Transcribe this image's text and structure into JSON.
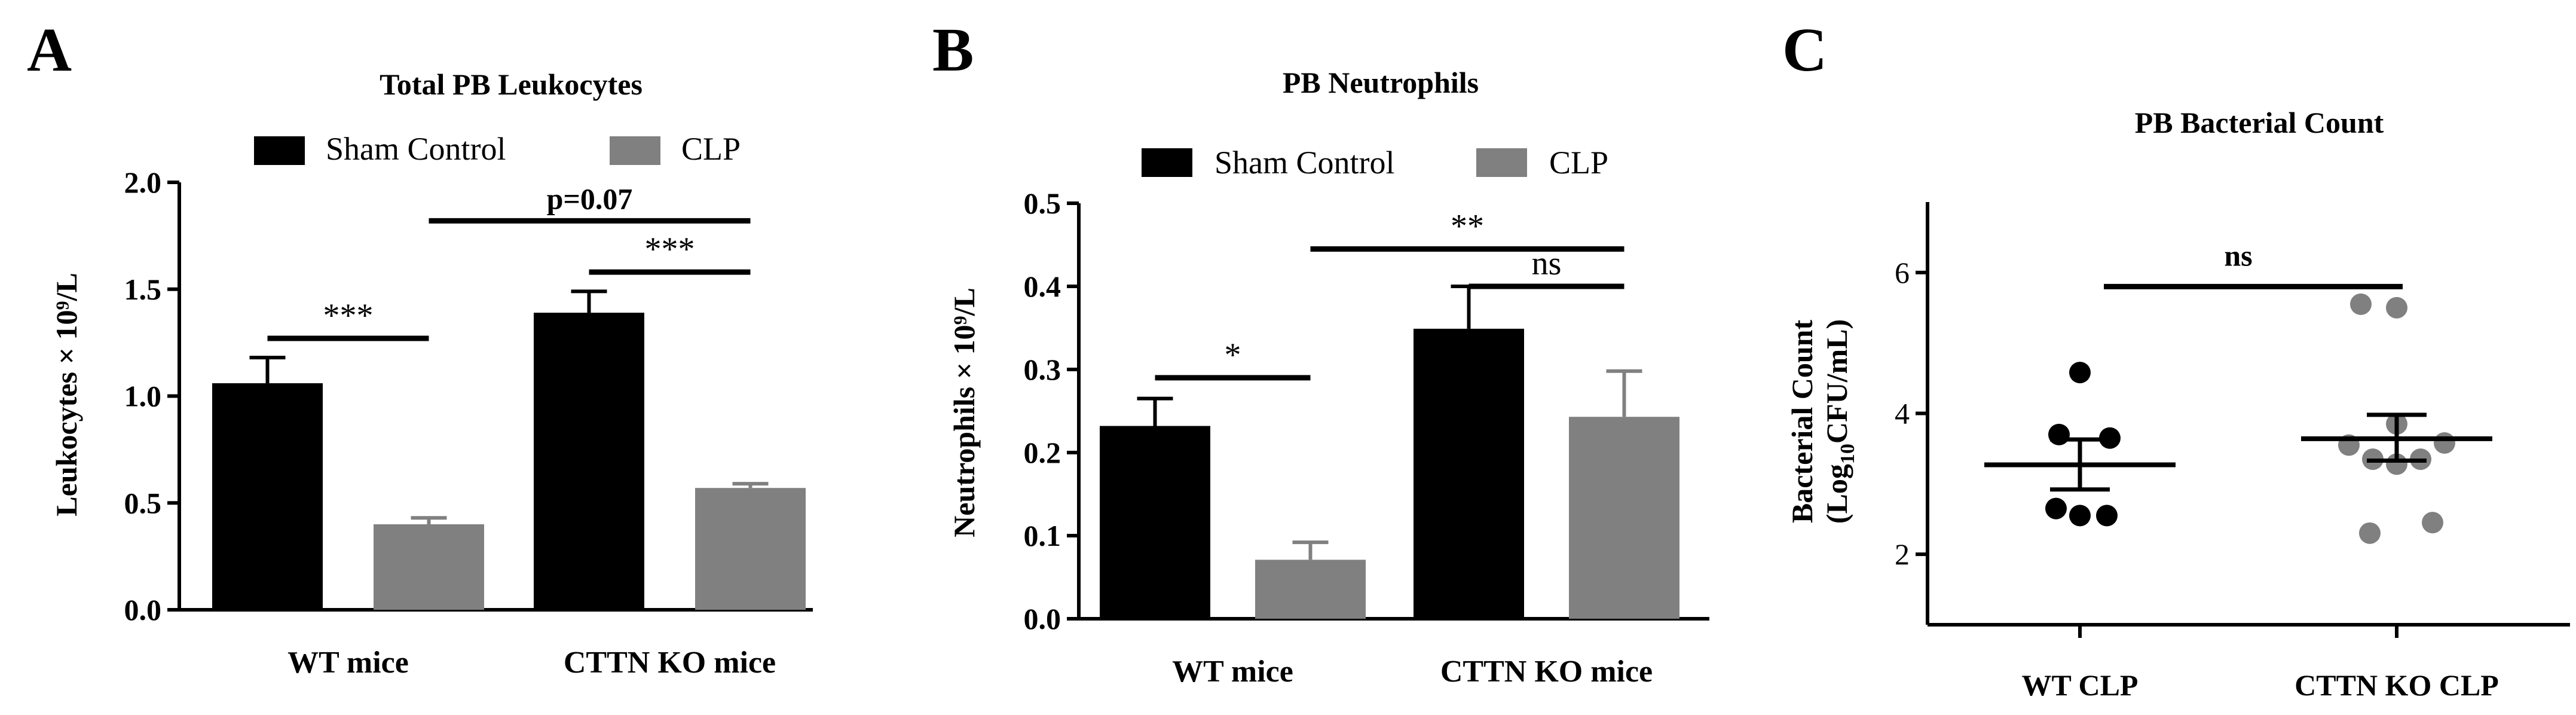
{
  "panels": [
    {
      "letter": "A",
      "title": "Total PB Leukocytes",
      "legend": [
        {
          "label": "Sham Control",
          "color": "#000000"
        },
        {
          "label": "CLP",
          "color": "#808080"
        }
      ],
      "ylabel": "Leukocytes × 10⁹/L",
      "chart_data": {
        "type": "bar",
        "categories": [
          "WT mice",
          "CTTN KO mice"
        ],
        "series": [
          {
            "name": "Sham Control",
            "color": "#000000",
            "values": [
              1.06,
              1.39
            ],
            "errors": [
              0.12,
              0.1
            ]
          },
          {
            "name": "CLP",
            "color": "#808080",
            "values": [
              0.4,
              0.57
            ],
            "errors": [
              0.03,
              0.02
            ]
          }
        ],
        "ylim": [
          0,
          2.0
        ],
        "yticks": [
          "0.0",
          "0.5",
          "1.0",
          "1.5",
          "2.0"
        ],
        "annotations": [
          {
            "text": "***",
            "label": "WT Sham vs WT CLP"
          },
          {
            "text": "***",
            "label": "KO Sham vs KO CLP"
          },
          {
            "text": "p=0.07",
            "label": "WT CLP vs KO CLP"
          }
        ]
      }
    },
    {
      "letter": "B",
      "title": "PB Neutrophils",
      "legend": [
        {
          "label": "Sham Control",
          "color": "#000000"
        },
        {
          "label": "CLP",
          "color": "#808080"
        }
      ],
      "ylabel": "Neutrophils × 10⁹/L",
      "chart_data": {
        "type": "bar",
        "categories": [
          "WT mice",
          "CTTN KO mice"
        ],
        "series": [
          {
            "name": "Sham Control",
            "color": "#000000",
            "values": [
              0.232,
              0.349
            ],
            "errors": [
              0.033,
              0.051
            ]
          },
          {
            "name": "CLP",
            "color": "#808080",
            "values": [
              0.071,
              0.243
            ],
            "errors": [
              0.021,
              0.055
            ]
          }
        ],
        "ylim": [
          0,
          0.5
        ],
        "yticks": [
          "0.0",
          "0.1",
          "0.2",
          "0.3",
          "0.4",
          "0.5"
        ],
        "annotations": [
          {
            "text": "*",
            "label": "WT Sham vs WT CLP"
          },
          {
            "text": "ns",
            "label": "KO Sham vs KO CLP"
          },
          {
            "text": "**",
            "label": "WT CLP vs KO CLP"
          }
        ]
      }
    },
    {
      "letter": "C",
      "title": "PB Bacterial Count",
      "ylabel_line1": "Bacterial Count",
      "ylabel_line2_pre": "(Log",
      "ylabel_line2_sub": "10",
      "ylabel_line2_post": "CFU/mL)",
      "chart_data": {
        "type": "scatter",
        "categories": [
          "WT CLP",
          "CTTN KO CLP"
        ],
        "groups": [
          {
            "name": "WT CLP",
            "color": "#000000",
            "mean": 3.27,
            "sem_low": 2.92,
            "sem_high": 3.63,
            "points": [
              4.58,
              3.7,
              3.65,
              2.65,
              2.55,
              2.55
            ]
          },
          {
            "name": "CTTN KO CLP",
            "color": "#808080",
            "mean": 3.64,
            "sem_low": 3.33,
            "sem_high": 3.98,
            "points": [
              5.55,
              5.5,
              3.85,
              3.58,
              3.55,
              3.35,
              3.35,
              3.28,
              2.45,
              2.3
            ]
          }
        ],
        "ylim": [
          1,
          7
        ],
        "yticks": [
          "2",
          "4",
          "6"
        ],
        "annotations": [
          {
            "text": "ns",
            "label": "WT CLP vs CTTN KO CLP"
          }
        ]
      }
    }
  ]
}
